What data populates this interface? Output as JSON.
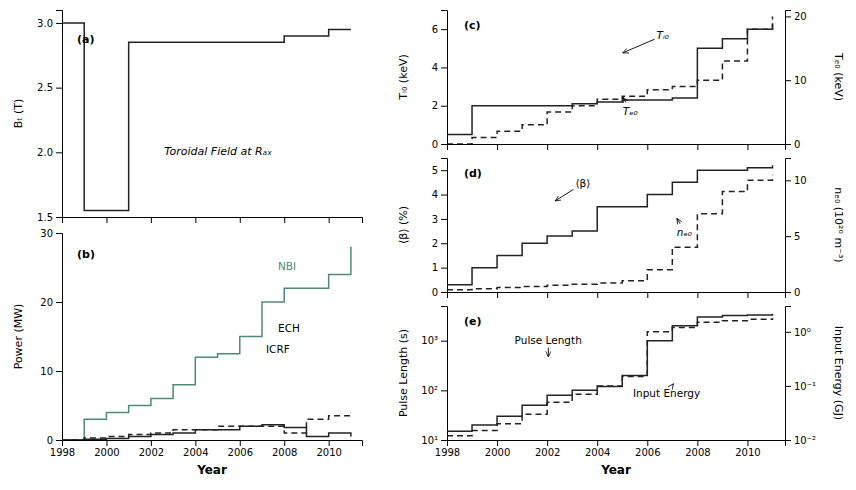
{
  "chart_data": [
    {
      "type": "step",
      "annotations": [
        "(a)",
        "Toroidal Field at Rₐₓ"
      ],
      "y_label": "Bₜ (T)",
      "x": [
        1998,
        1999,
        1999,
        2000,
        2001,
        2002,
        2003,
        2004,
        2005,
        2006,
        2007,
        2008,
        2008,
        2009,
        2010,
        2011
      ],
      "series": [
        {
          "color": "#222222",
          "line_style": "solid",
          "values": [
            3.0,
            3.0,
            1.55,
            1.55,
            2.85,
            2.85,
            2.85,
            2.85,
            2.85,
            2.85,
            2.85,
            2.85,
            2.9,
            2.9,
            2.95,
            2.95
          ]
        }
      ],
      "xlim": [
        1998,
        2011.5
      ],
      "xticks": [
        1998,
        2000,
        2002,
        2004,
        2006,
        2008,
        2010
      ],
      "ylim": [
        1.5,
        3.1
      ],
      "yticks": [
        1.5,
        {
          "value": 2.0,
          "label": "2.0"
        },
        2.5,
        {
          "value": 3.0,
          "label": "3.0"
        }
      ],
      "tick_labels": "y"
    },
    {
      "type": "step",
      "annotations": [
        "(b)"
      ],
      "x_label": "Year",
      "y_label": "Power (MW)",
      "x": [
        1998,
        1999,
        2000,
        2001,
        2002,
        2003,
        2004,
        2005,
        2006,
        2007,
        2008,
        2009,
        2010,
        2011
      ],
      "series": [
        {
          "name": "NBI",
          "color": "#4d8a7a",
          "line_style": "solid",
          "values": [
            0,
            3.0,
            4.0,
            5.0,
            6.0,
            8.0,
            12.0,
            12.5,
            15.0,
            20.0,
            22.0,
            22.0,
            24.0,
            28.0
          ]
        },
        {
          "name": "ECH",
          "color": "#222222",
          "line_style": "dashed",
          "values": [
            0,
            0.3,
            0.5,
            0.8,
            1.0,
            1.5,
            1.5,
            2.0,
            2.0,
            2.0,
            1.0,
            3.0,
            3.5,
            4.0
          ]
        },
        {
          "name": "ICRF",
          "color": "#222222",
          "line_style": "solid",
          "values": [
            0,
            0.1,
            0.2,
            0.5,
            0.8,
            1.0,
            1.5,
            1.5,
            2.0,
            2.2,
            1.8,
            0.5,
            1.0,
            0.5
          ]
        }
      ],
      "xlim": [
        1998,
        2011.5
      ],
      "xticks": [
        1998,
        2000,
        2002,
        2004,
        2006,
        2008,
        2010
      ],
      "ylim": [
        0,
        30
      ],
      "yticks": [
        0,
        10,
        20,
        30
      ]
    },
    {
      "type": "step",
      "annotations": [
        "(c)"
      ],
      "y_label": "Tᵢ₀ (keV)",
      "y2_label": "Tₑ₀ (keV)",
      "x": [
        1998,
        1999,
        2000,
        2001,
        2002,
        2003,
        2004,
        2005,
        2006,
        2007,
        2008,
        2009,
        2010,
        2011
      ],
      "series": [
        {
          "name": "Tᵢ₀",
          "color": "#222222",
          "line_style": "solid",
          "values": [
            0.5,
            2.0,
            2.0,
            2.0,
            2.0,
            2.1,
            2.2,
            2.3,
            2.3,
            2.4,
            5.0,
            5.5,
            6.0,
            6.3
          ]
        },
        {
          "name": "Tₑ₀",
          "color": "#222222",
          "line_style": "dashed",
          "axis": "y2",
          "values": [
            0,
            1.0,
            2.0,
            3.0,
            5.0,
            6.0,
            7.0,
            7.5,
            8.5,
            9.0,
            10.0,
            13.0,
            18.0,
            20.0
          ]
        }
      ],
      "xlim": [
        1998,
        2011.5
      ],
      "xticks": [
        1998,
        2000,
        2002,
        2004,
        2006,
        2008,
        2010
      ],
      "ylim": [
        0,
        7
      ],
      "yticks": [
        0,
        2,
        4,
        6
      ],
      "y2lim": [
        0,
        21
      ],
      "y2ticks": [
        0,
        10,
        20
      ],
      "tick_labels": "y"
    },
    {
      "type": "step",
      "annotations": [
        "(d)"
      ],
      "y_label": "⟨β⟩ (%)",
      "y2_label": "nₑ₀ (10²⁰ m⁻³)",
      "x": [
        1998,
        1999,
        2000,
        2001,
        2002,
        2003,
        2004,
        2005,
        2006,
        2007,
        2008,
        2009,
        2010,
        2011
      ],
      "series": [
        {
          "name": "⟨β⟩",
          "color": "#222222",
          "line_style": "solid",
          "values": [
            0.3,
            1.0,
            1.5,
            2.0,
            2.3,
            2.5,
            3.5,
            3.5,
            4.0,
            4.5,
            5.0,
            5.0,
            5.1,
            5.2
          ]
        },
        {
          "name": "nₑ₀",
          "color": "#222222",
          "line_style": "dashed",
          "axis": "y2",
          "values": [
            0.2,
            0.3,
            0.4,
            0.5,
            0.6,
            0.7,
            0.8,
            1.0,
            2.0,
            4.0,
            7.0,
            9.0,
            10.0,
            10.5
          ]
        }
      ],
      "xlim": [
        1998,
        2011.5
      ],
      "xticks": [
        1998,
        2000,
        2002,
        2004,
        2006,
        2008,
        2010
      ],
      "ylim": [
        0,
        5.5
      ],
      "yticks": [
        0,
        1,
        2,
        3,
        4,
        5
      ],
      "y2lim": [
        0,
        12
      ],
      "y2ticks": [
        0,
        5,
        10
      ],
      "tick_labels": "y"
    },
    {
      "type": "step",
      "annotations": [
        "(e)"
      ],
      "x_label": "Year",
      "y_label": "Pulse Length (s)",
      "y2_label": "Input Energy (GJ)",
      "log": "y",
      "x": [
        1998,
        1999,
        2000,
        2001,
        2002,
        2003,
        2004,
        2005,
        2006,
        2007,
        2008,
        2009,
        2010,
        2011
      ],
      "series": [
        {
          "name": "Pulse Length",
          "color": "#222222",
          "line_style": "solid",
          "values": [
            15,
            20,
            30,
            50,
            80,
            100,
            120,
            200,
            1000,
            2000,
            3000,
            3200,
            3300,
            3500
          ]
        },
        {
          "name": "Input Energy",
          "color": "#222222",
          "line_style": "dashed",
          "axis": "y2",
          "values": [
            0.012,
            0.015,
            0.02,
            0.03,
            0.05,
            0.07,
            0.1,
            0.15,
            1.0,
            1.2,
            1.5,
            1.6,
            1.7,
            1.8
          ]
        }
      ],
      "xlim": [
        1998,
        2011.5
      ],
      "xticks": [
        1998,
        2000,
        2002,
        2004,
        2006,
        2008,
        2010
      ],
      "ylim": [
        10,
        5000
      ],
      "yticks": [
        {
          "value": 10,
          "label": "10¹"
        },
        {
          "value": 100,
          "label": "10²"
        },
        {
          "value": 1000,
          "label": "10³"
        }
      ],
      "y2lim": [
        0.01,
        3
      ],
      "y2ticks": [
        {
          "value": 0.01,
          "label": "10⁻²"
        },
        {
          "value": 0.1,
          "label": "10⁻¹"
        },
        {
          "value": 1,
          "label": "10⁰"
        }
      ]
    }
  ]
}
